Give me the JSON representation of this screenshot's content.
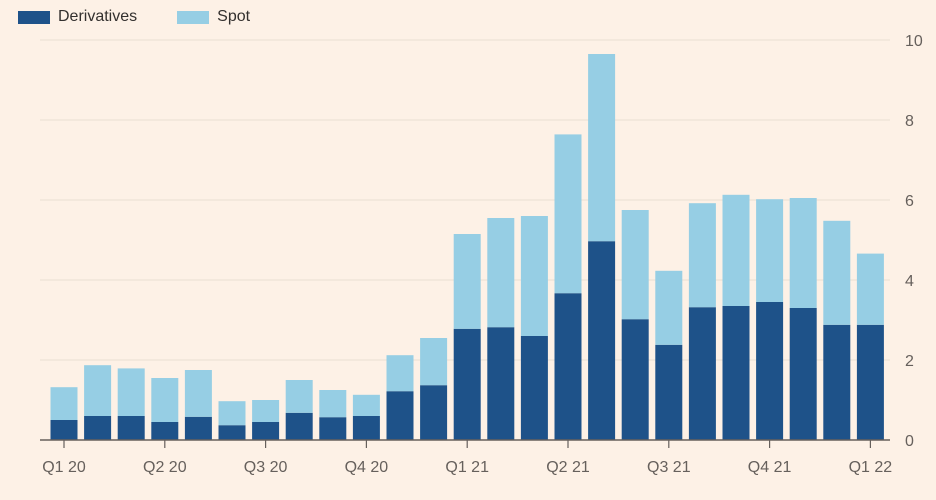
{
  "colors": {
    "background": "#fdf1e6",
    "derivatives": "#1e5289",
    "spot": "#96cee4",
    "grid": "#e9ded3",
    "axis": "#66605c",
    "text": "#33302e"
  },
  "legend": {
    "derivatives": "Derivatives",
    "spot": "Spot"
  },
  "chart_data": {
    "type": "bar",
    "stacked": true,
    "title": "",
    "xlabel": "",
    "ylabel": "",
    "ylim": [
      0,
      10
    ],
    "yticks": [
      0,
      2,
      4,
      6,
      8,
      10
    ],
    "y_axis_side": "right",
    "legend_position": "top-left",
    "grid": true,
    "x_tick_labels": [
      "Q1 20",
      "Q2 20",
      "Q3 20",
      "Q4 20",
      "Q1 21",
      "Q2 21",
      "Q3 21",
      "Q4 21",
      "Q1 22"
    ],
    "x_tick_positions": [
      0,
      3,
      6,
      9,
      12,
      15,
      18,
      21,
      24
    ],
    "bar_count": 25,
    "series": [
      {
        "name": "Derivatives",
        "values": [
          0.5,
          0.6,
          0.6,
          0.45,
          0.58,
          0.37,
          0.45,
          0.68,
          0.57,
          0.6,
          1.22,
          1.37,
          2.78,
          2.82,
          2.6,
          3.67,
          4.97,
          3.02,
          2.38,
          3.32,
          3.35,
          3.45,
          3.3,
          2.88,
          2.88
        ]
      },
      {
        "name": "Spot",
        "values": [
          0.82,
          1.27,
          1.19,
          1.1,
          1.17,
          0.6,
          0.55,
          0.82,
          0.68,
          0.53,
          0.9,
          1.18,
          2.37,
          2.73,
          3.0,
          3.97,
          4.68,
          2.73,
          1.85,
          2.6,
          2.78,
          2.57,
          2.75,
          2.6,
          1.78
        ]
      }
    ]
  }
}
